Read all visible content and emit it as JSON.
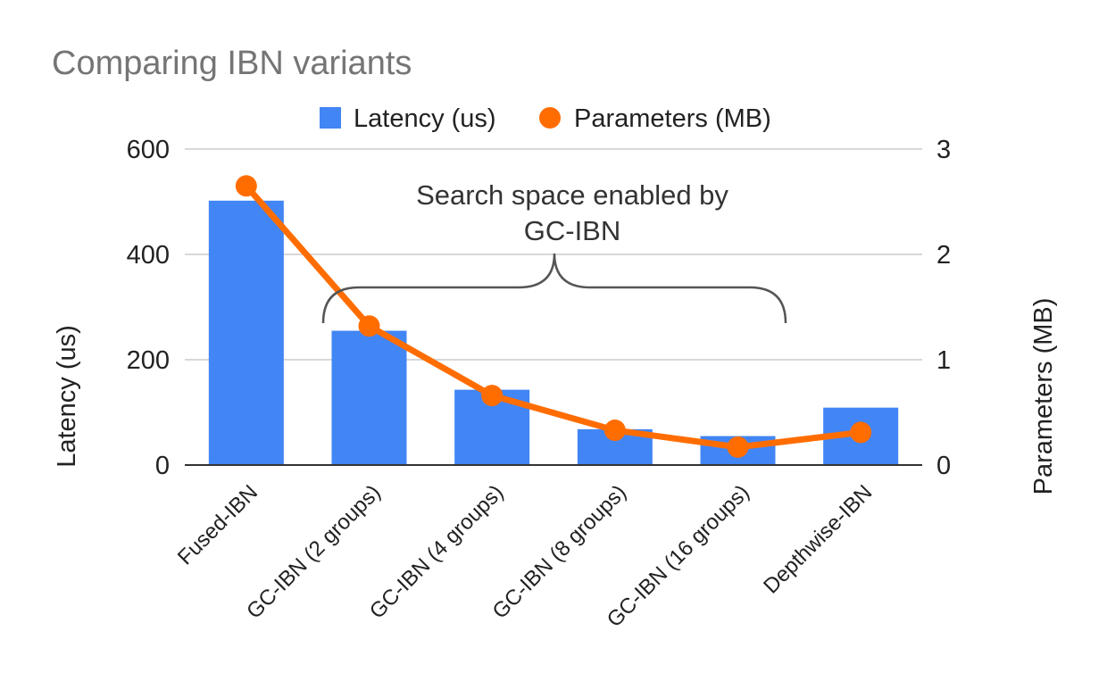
{
  "chart_data": {
    "type": "bar",
    "title": "Comparing IBN variants",
    "categories": [
      "Fused-IBN",
      "GC-IBN (2 groups)",
      "GC-IBN (4 groups)",
      "GC-IBN (8 groups)",
      "GC-IBN (16 groups)",
      "Depthwise-IBN"
    ],
    "series": [
      {
        "name": "Latency (us)",
        "type": "bar",
        "axis": "left",
        "color": "#4285f4",
        "values": [
          502,
          255,
          143,
          68,
          55,
          109
        ]
      },
      {
        "name": "Parameters (MB)",
        "type": "line",
        "axis": "right",
        "color": "#ff6d01",
        "values": [
          2.65,
          1.32,
          0.66,
          0.33,
          0.17,
          0.31
        ]
      }
    ],
    "ylabel": "Latency (us)",
    "y2label": "Parameters (MB)",
    "ylim": [
      0,
      600
    ],
    "y2lim": [
      0,
      3
    ],
    "yticks": [
      "0",
      "200",
      "400",
      "600"
    ],
    "y2ticks": [
      "0",
      "1",
      "2",
      "3"
    ],
    "grid": true,
    "legend_position": "top",
    "annotation": {
      "lines": [
        "Search space enabled by",
        "GC-IBN"
      ],
      "spans_categories": [
        "GC-IBN (2 groups)",
        "GC-IBN (16 groups)"
      ]
    }
  }
}
